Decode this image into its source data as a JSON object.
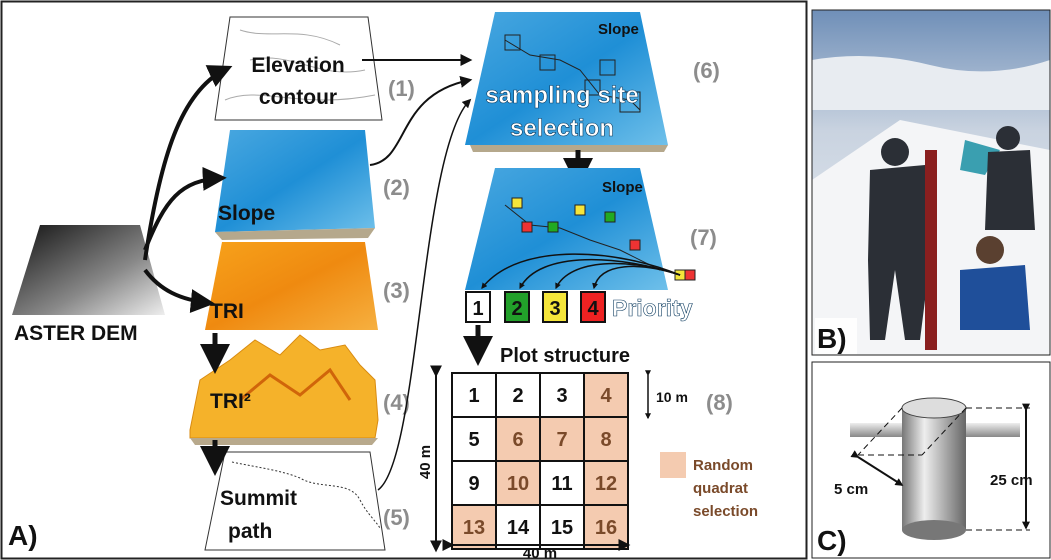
{
  "panel_a": {
    "label": "A)",
    "dem": "ASTER DEM",
    "layers": [
      {
        "label": [
          "Elevation",
          "contour"
        ],
        "step": "(1)"
      },
      {
        "label": [
          "Slope"
        ],
        "step": "(2)"
      },
      {
        "label": [
          "TRI"
        ],
        "step": "(3)"
      },
      {
        "label": [
          "TRI²"
        ],
        "step": "(4)"
      },
      {
        "label": [
          "Summit",
          "path"
        ],
        "step": "(5)"
      }
    ],
    "selection": {
      "map_label": "Slope",
      "title": [
        "sampling site",
        "selection"
      ],
      "step": "(6)"
    },
    "priority": {
      "map_label": "Slope",
      "step": "(7)",
      "ranks": [
        "1",
        "2",
        "3",
        "4"
      ],
      "title": "Priority"
    },
    "plot": {
      "title": "Plot structure",
      "cells": [
        "1",
        "2",
        "3",
        "4",
        "5",
        "6",
        "7",
        "8",
        "9",
        "10",
        "11",
        "12",
        "13",
        "14",
        "15",
        "16"
      ],
      "cell_size": "10 m",
      "step": "(8)",
      "height": "40 m",
      "width": "40 m",
      "legend": [
        "Random",
        "quadrat",
        "selection"
      ]
    }
  },
  "panel_b": {
    "label": "B)"
  },
  "panel_c": {
    "label": "C)",
    "diameter": "5 cm",
    "depth": "25 cm"
  }
}
